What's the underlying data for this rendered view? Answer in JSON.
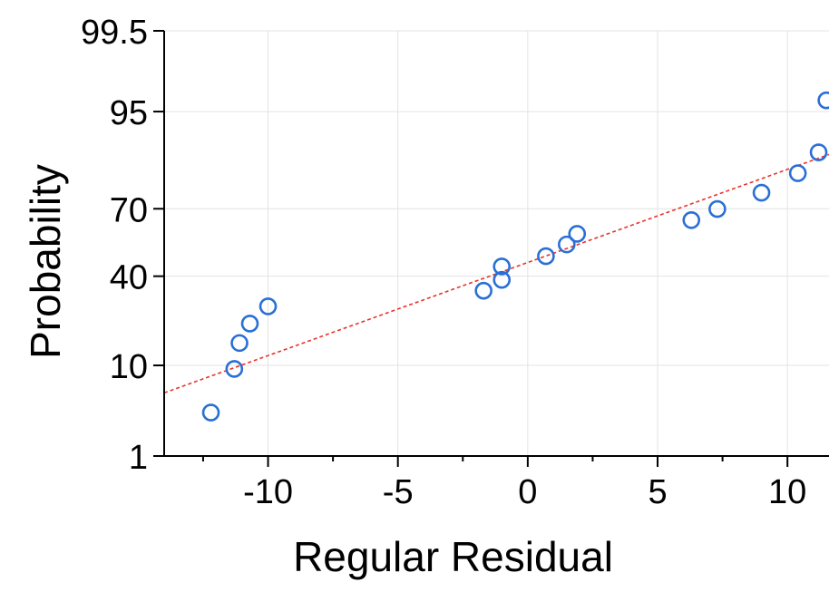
{
  "chart_data": {
    "type": "scatter",
    "title": "",
    "xlabel": "Regular Residual",
    "ylabel": "Probability",
    "xlim": [
      -14,
      11.6
    ],
    "y_scale": "normal-probability",
    "ylim": [
      1,
      99.5
    ],
    "x_ticks": [
      -10,
      -5,
      0,
      5,
      10
    ],
    "x_tick_labels": [
      "-10",
      "-5",
      "0",
      "5",
      "10"
    ],
    "y_ticks": [
      1,
      10,
      40,
      70,
      95,
      99.5
    ],
    "y_tick_labels": [
      "1",
      "10",
      "40",
      "70",
      "95",
      "99.5"
    ],
    "grid": true,
    "legend": "none",
    "series": [
      {
        "points": [
          {
            "x": -12.2,
            "y": 3.4
          },
          {
            "x": -11.3,
            "y": 9.3
          },
          {
            "x": -11.1,
            "y": 15.3
          },
          {
            "x": -10.7,
            "y": 21.2
          },
          {
            "x": -10.0,
            "y": 27.4
          },
          {
            "x": -1.7,
            "y": 33.7
          },
          {
            "x": -1.0,
            "y": 38.4
          },
          {
            "x": -1.0,
            "y": 44.4
          },
          {
            "x": 0.7,
            "y": 49.1
          },
          {
            "x": 1.5,
            "y": 54.5
          },
          {
            "x": 1.9,
            "y": 59.3
          },
          {
            "x": 6.3,
            "y": 65.3
          },
          {
            "x": 7.3,
            "y": 69.9
          },
          {
            "x": 9.0,
            "y": 76.1
          },
          {
            "x": 10.4,
            "y": 82.5
          },
          {
            "x": 11.2,
            "y": 88.0
          },
          {
            "x": 11.5,
            "y": 96.2
          }
        ],
        "marker": "open-circle",
        "color": "#2a6fd6"
      }
    ],
    "fit_line": {
      "style": "dashed",
      "color": "#e8332a",
      "x": [
        -14,
        11.6
      ],
      "y": [
        5.5,
        87.5
      ]
    }
  }
}
